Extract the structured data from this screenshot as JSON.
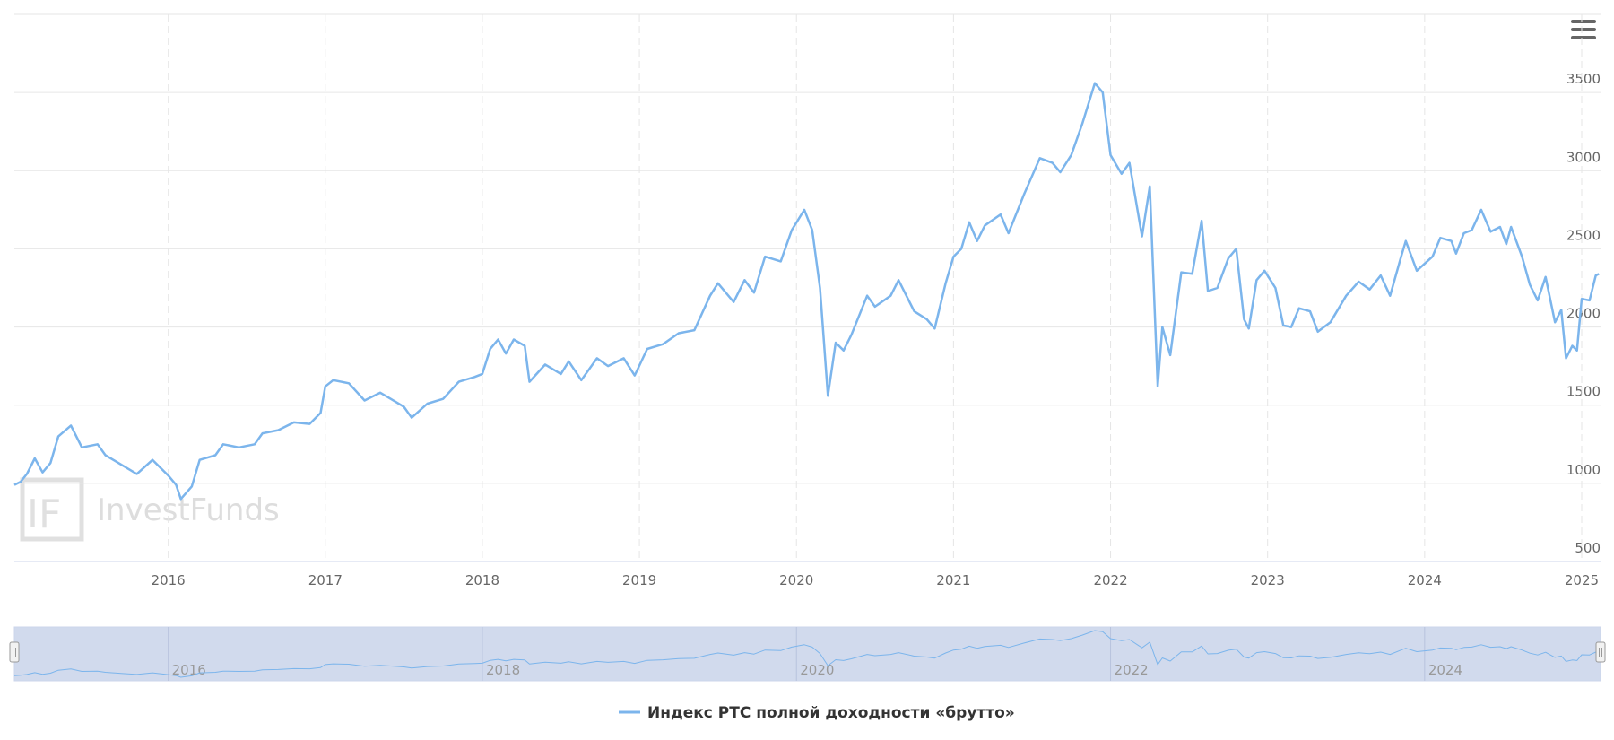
{
  "chart_data": {
    "type": "line",
    "watermark": "InvestFunds",
    "x": [
      2015.02,
      2015.06,
      2015.1,
      2015.15,
      2015.2,
      2015.25,
      2015.3,
      2015.38,
      2015.45,
      2015.55,
      2015.6,
      2015.7,
      2015.8,
      2015.9,
      2016.0,
      2016.05,
      2016.08,
      2016.15,
      2016.2,
      2016.3,
      2016.35,
      2016.45,
      2016.55,
      2016.6,
      2016.7,
      2016.8,
      2016.9,
      2016.97,
      2017.0,
      2017.05,
      2017.15,
      2017.25,
      2017.35,
      2017.45,
      2017.5,
      2017.55,
      2017.65,
      2017.75,
      2017.85,
      2017.95,
      2018.0,
      2018.05,
      2018.1,
      2018.15,
      2018.2,
      2018.27,
      2018.3,
      2018.4,
      2018.5,
      2018.55,
      2018.63,
      2018.73,
      2018.8,
      2018.9,
      2018.97,
      2019.05,
      2019.15,
      2019.25,
      2019.35,
      2019.45,
      2019.5,
      2019.6,
      2019.67,
      2019.73,
      2019.8,
      2019.9,
      2019.97,
      2020.05,
      2020.1,
      2020.15,
      2020.2,
      2020.25,
      2020.3,
      2020.35,
      2020.45,
      2020.5,
      2020.6,
      2020.65,
      2020.75,
      2020.83,
      2020.88,
      2020.95,
      2021.0,
      2021.05,
      2021.1,
      2021.15,
      2021.2,
      2021.3,
      2021.35,
      2021.45,
      2021.55,
      2021.63,
      2021.68,
      2021.75,
      2021.82,
      2021.9,
      2021.95,
      2022.0,
      2022.07,
      2022.12,
      2022.2,
      2022.25,
      2022.3,
      2022.33,
      2022.38,
      2022.45,
      2022.52,
      2022.58,
      2022.62,
      2022.68,
      2022.75,
      2022.8,
      2022.85,
      2022.88,
      2022.93,
      2022.98,
      2023.05,
      2023.1,
      2023.15,
      2023.2,
      2023.27,
      2023.32,
      2023.4,
      2023.5,
      2023.58,
      2023.65,
      2023.72,
      2023.78,
      2023.85,
      2023.88,
      2023.95,
      2024.05,
      2024.1,
      2024.17,
      2024.2,
      2024.25,
      2024.3,
      2024.36,
      2024.42,
      2024.48,
      2024.52,
      2024.55,
      2024.62,
      2024.67,
      2024.72,
      2024.77,
      2024.83,
      2024.87,
      2024.9,
      2024.94,
      2024.97,
      2025.0,
      2025.05,
      2025.09,
      2025.11
    ],
    "series": [
      {
        "name": "Индекс РТС полной доходности «брутто»",
        "color": "#7cb5ec",
        "values": [
          990,
          1010,
          1060,
          1160,
          1070,
          1130,
          1300,
          1370,
          1230,
          1250,
          1180,
          1120,
          1060,
          1150,
          1050,
          990,
          900,
          980,
          1150,
          1180,
          1250,
          1230,
          1250,
          1320,
          1340,
          1390,
          1380,
          1450,
          1620,
          1660,
          1640,
          1530,
          1580,
          1520,
          1490,
          1420,
          1510,
          1540,
          1650,
          1680,
          1700,
          1860,
          1920,
          1830,
          1920,
          1880,
          1650,
          1760,
          1700,
          1780,
          1660,
          1800,
          1750,
          1800,
          1690,
          1860,
          1890,
          1960,
          1980,
          2200,
          2280,
          2160,
          2300,
          2220,
          2450,
          2420,
          2620,
          2750,
          2620,
          2250,
          1560,
          1900,
          1850,
          1950,
          2200,
          2130,
          2200,
          2300,
          2100,
          2050,
          1990,
          2280,
          2450,
          2500,
          2670,
          2550,
          2650,
          2720,
          2600,
          2850,
          3080,
          3050,
          2990,
          3100,
          3300,
          3560,
          3500,
          3100,
          2980,
          3050,
          2580,
          2900,
          1620,
          2000,
          1820,
          2350,
          2340,
          2680,
          2230,
          2250,
          2440,
          2500,
          2050,
          1990,
          2300,
          2360,
          2250,
          2010,
          2000,
          2120,
          2100,
          1970,
          2030,
          2200,
          2290,
          2240,
          2330,
          2200,
          2450,
          2550,
          2360,
          2450,
          2570,
          2550,
          2470,
          2600,
          2620,
          2750,
          2610,
          2640,
          2530,
          2640,
          2450,
          2270,
          2170,
          2320,
          2030,
          2110,
          1800,
          1880,
          1850,
          2180,
          2170,
          2330,
          2340
        ]
      }
    ],
    "xlim": [
      2015.02,
      2025.12
    ],
    "xticks": [
      2016,
      2017,
      2018,
      2019,
      2020,
      2021,
      2022,
      2023,
      2024,
      2025
    ],
    "ylim": [
      500,
      4000
    ],
    "yticks": [
      500,
      1000,
      1500,
      2000,
      2500,
      3000,
      3500
    ],
    "navigator_xticks": [
      2016,
      2018,
      2020,
      2022,
      2024
    ],
    "grid": true
  }
}
